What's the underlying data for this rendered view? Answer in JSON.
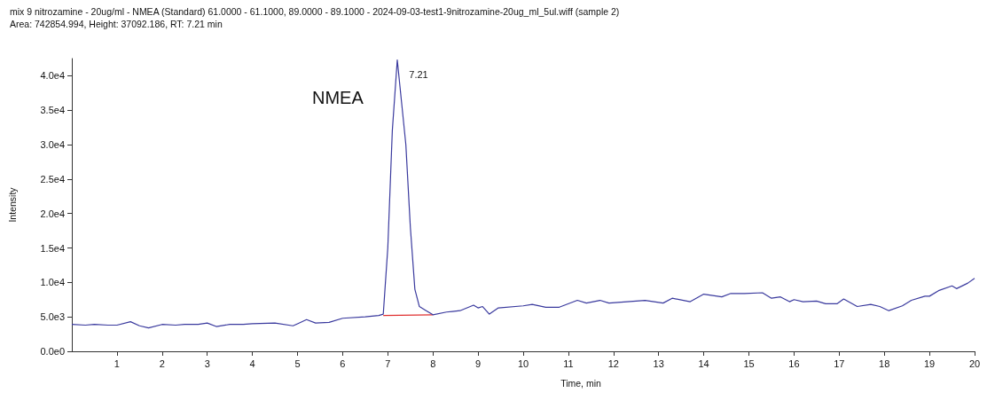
{
  "chart_data": {
    "type": "line",
    "title": "mix 9 nitrozamine - 20ug/ml - NMEA (Standard) 61.0000 - 61.1000, 89.0000 - 89.1000 - 2024-09-03-test1-9nitrozamine-20ug_ml_5ul.wiff (sample 2)",
    "subtitle": "Area: 742854.994, Height: 37092.186, RT: 7.21 min",
    "xlabel": "Time, min",
    "ylabel": "Intensity",
    "xlim": [
      0,
      20
    ],
    "xticks": [
      1,
      2,
      3,
      4,
      5,
      6,
      7,
      8,
      9,
      10,
      11,
      12,
      13,
      14,
      15,
      16,
      17,
      18,
      19,
      20
    ],
    "ylim": [
      0,
      42500
    ],
    "yticks": [
      {
        "value": 0,
        "label": "0.0e0"
      },
      {
        "value": 5000,
        "label": "5.0e3"
      },
      {
        "value": 10000,
        "label": "1.0e4"
      },
      {
        "value": 15000,
        "label": "1.5e4"
      },
      {
        "value": 20000,
        "label": "2.0e4"
      },
      {
        "value": 25000,
        "label": "2.5e4"
      },
      {
        "value": 30000,
        "label": "3.0e4"
      },
      {
        "value": 35000,
        "label": "3.5e4"
      },
      {
        "value": 40000,
        "label": "4.0e4"
      }
    ],
    "series": [
      {
        "color": "#3a3a9e",
        "x": [
          0,
          0.3,
          0.5,
          0.8,
          1.0,
          1.3,
          1.5,
          1.7,
          2.0,
          2.3,
          2.5,
          2.8,
          3.0,
          3.2,
          3.5,
          3.8,
          4.0,
          4.5,
          4.9,
          5.0,
          5.2,
          5.4,
          5.7,
          6.0,
          6.5,
          6.8,
          6.9,
          7.0,
          7.1,
          7.21,
          7.4,
          7.5,
          7.6,
          7.7,
          7.85,
          8.0,
          8.3,
          8.6,
          8.9,
          9.0,
          9.1,
          9.25,
          9.45,
          10.0,
          10.2,
          10.5,
          10.8,
          11.2,
          11.4,
          11.7,
          11.9,
          12.1,
          12.7,
          13.1,
          13.3,
          13.7,
          14.0,
          14.4,
          14.6,
          14.9,
          15.3,
          15.5,
          15.7,
          15.9,
          16.0,
          16.2,
          16.5,
          16.7,
          16.95,
          17.1,
          17.4,
          17.7,
          17.9,
          18.1,
          18.4,
          18.6,
          18.9,
          19.0,
          19.2,
          19.5,
          19.6,
          19.85,
          20.0
        ],
        "values": [
          3900,
          3800,
          3900,
          3800,
          3800,
          4300,
          3700,
          3400,
          3900,
          3800,
          3900,
          3900,
          4100,
          3600,
          3900,
          3900,
          4000,
          4100,
          3700,
          4000,
          4600,
          4100,
          4200,
          4800,
          5000,
          5200,
          5400,
          15000,
          32000,
          42300,
          30000,
          18000,
          9000,
          6500,
          5900,
          5300,
          5700,
          5900,
          6700,
          6300,
          6500,
          5400,
          6300,
          6600,
          6800,
          6400,
          6400,
          7400,
          7000,
          7400,
          7000,
          7100,
          7400,
          7000,
          7700,
          7200,
          8300,
          7900,
          8400,
          8400,
          8500,
          7700,
          7900,
          7200,
          7500,
          7200,
          7300,
          6900,
          6900,
          7600,
          6500,
          6800,
          6500,
          5900,
          6600,
          7400,
          8000,
          8000,
          8800,
          9500,
          9100,
          9900,
          10600
        ]
      },
      {
        "color": "#e03030",
        "x": [
          6.9,
          8.0
        ],
        "values": [
          5200,
          5300
        ]
      }
    ],
    "annotations": [
      "NMEA",
      {
        "text": "7.21",
        "x": 7.21,
        "y": 42300
      }
    ],
    "grid": false,
    "marker": "none",
    "line_style": "solid"
  }
}
